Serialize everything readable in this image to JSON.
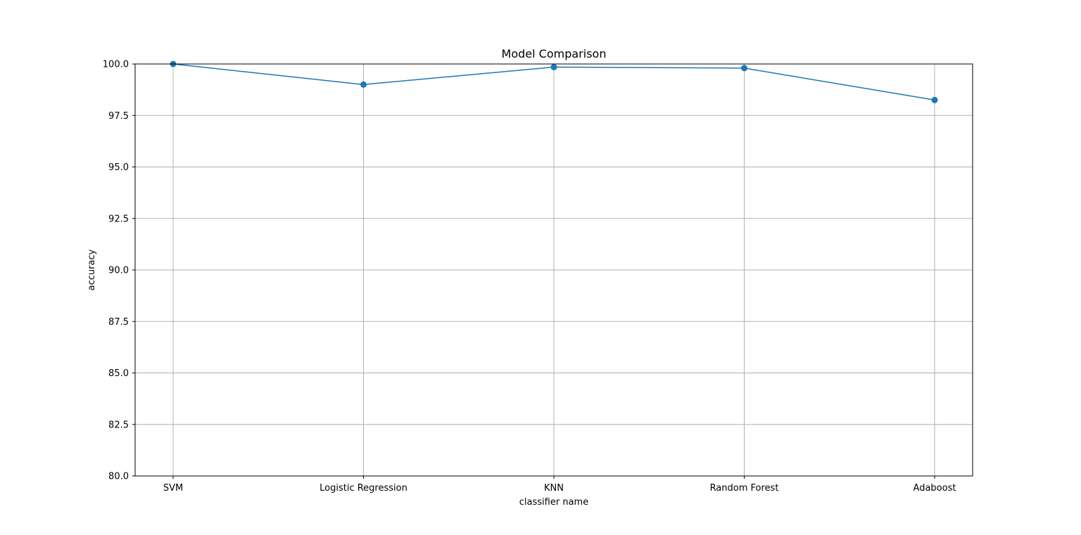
{
  "chart_data": {
    "type": "line",
    "title": "Model Comparison",
    "xlabel": "classifier name",
    "ylabel": "accuracy",
    "categories": [
      "SVM",
      "Logistic Regression",
      "KNN",
      "Random Forest",
      "Adaboost"
    ],
    "series": [
      {
        "name": "accuracy",
        "values": [
          100.0,
          99.0,
          99.85,
          99.8,
          98.25
        ],
        "color": "#1f77b4",
        "marker": "circle"
      }
    ],
    "ylim": [
      80.0,
      100.0
    ],
    "yticks": [
      80.0,
      82.5,
      85.0,
      87.5,
      90.0,
      92.5,
      95.0,
      97.5,
      100.0
    ],
    "ytick_labels": [
      "80.0",
      "82.5",
      "85.0",
      "87.5",
      "90.0",
      "92.5",
      "95.0",
      "97.5",
      "100.0"
    ],
    "grid": true,
    "legend": "none"
  }
}
